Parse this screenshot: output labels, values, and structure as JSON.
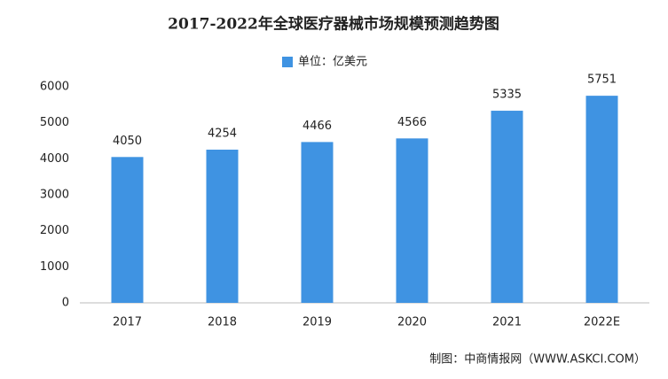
{
  "chart_data": {
    "type": "bar",
    "title": "2017-2022年全球医疗器械市场规模预测趋势图",
    "legend_label": "单位：亿美元",
    "categories": [
      "2017",
      "2018",
      "2019",
      "2020",
      "2021",
      "2022E"
    ],
    "values": [
      4050,
      4254,
      4466,
      4566,
      5335,
      5751
    ],
    "color": "#3f93e2",
    "ylim": [
      0,
      6000
    ],
    "yticks": [
      0,
      1000,
      2000,
      3000,
      4000,
      5000,
      6000
    ],
    "grid": false,
    "source": "制图：中商情报网（WWW.ASKCI.COM）"
  }
}
